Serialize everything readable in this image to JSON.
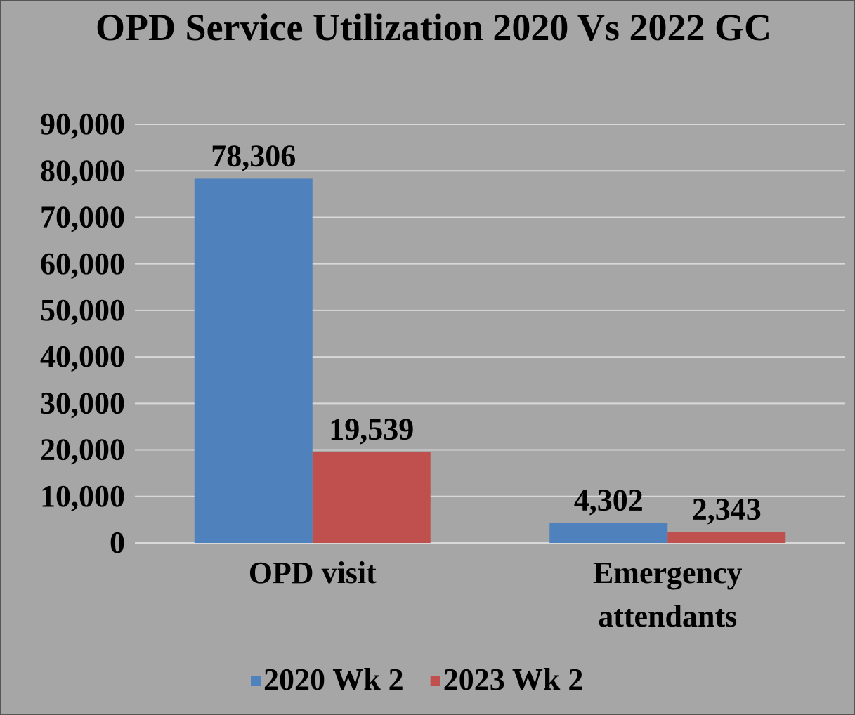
{
  "chart_data": {
    "type": "bar",
    "title": "OPD Service Utilization 2020 Vs 2022 GC",
    "categories": [
      "OPD visit",
      "Emergency attendants"
    ],
    "series": [
      {
        "name": "2020 Wk 2",
        "color": "#4f81bd",
        "values": [
          78306,
          4302
        ],
        "value_labels": [
          "78,306",
          "4,302"
        ]
      },
      {
        "name": "2023 Wk 2",
        "color": "#c0504d",
        "values": [
          19539,
          2343
        ],
        "value_labels": [
          "19,539",
          "2,343"
        ]
      }
    ],
    "ylim": [
      0,
      90000
    ],
    "yticks": [
      0,
      {
        "value": 10000,
        "label": "10,000"
      },
      {
        "value": 20000,
        "label": "20,000"
      },
      {
        "value": 30000,
        "label": "30,000"
      },
      {
        "value": 40000,
        "label": "40,000"
      },
      {
        "value": 50000,
        "label": "50,000"
      },
      {
        "value": 60000,
        "label": "60,000"
      },
      {
        "value": 70000,
        "label": "70,000"
      },
      {
        "value": 80000,
        "label": "80,000"
      },
      {
        "value": 90000,
        "label": "90,000"
      }
    ],
    "grid": true,
    "legend": "bottom"
  }
}
